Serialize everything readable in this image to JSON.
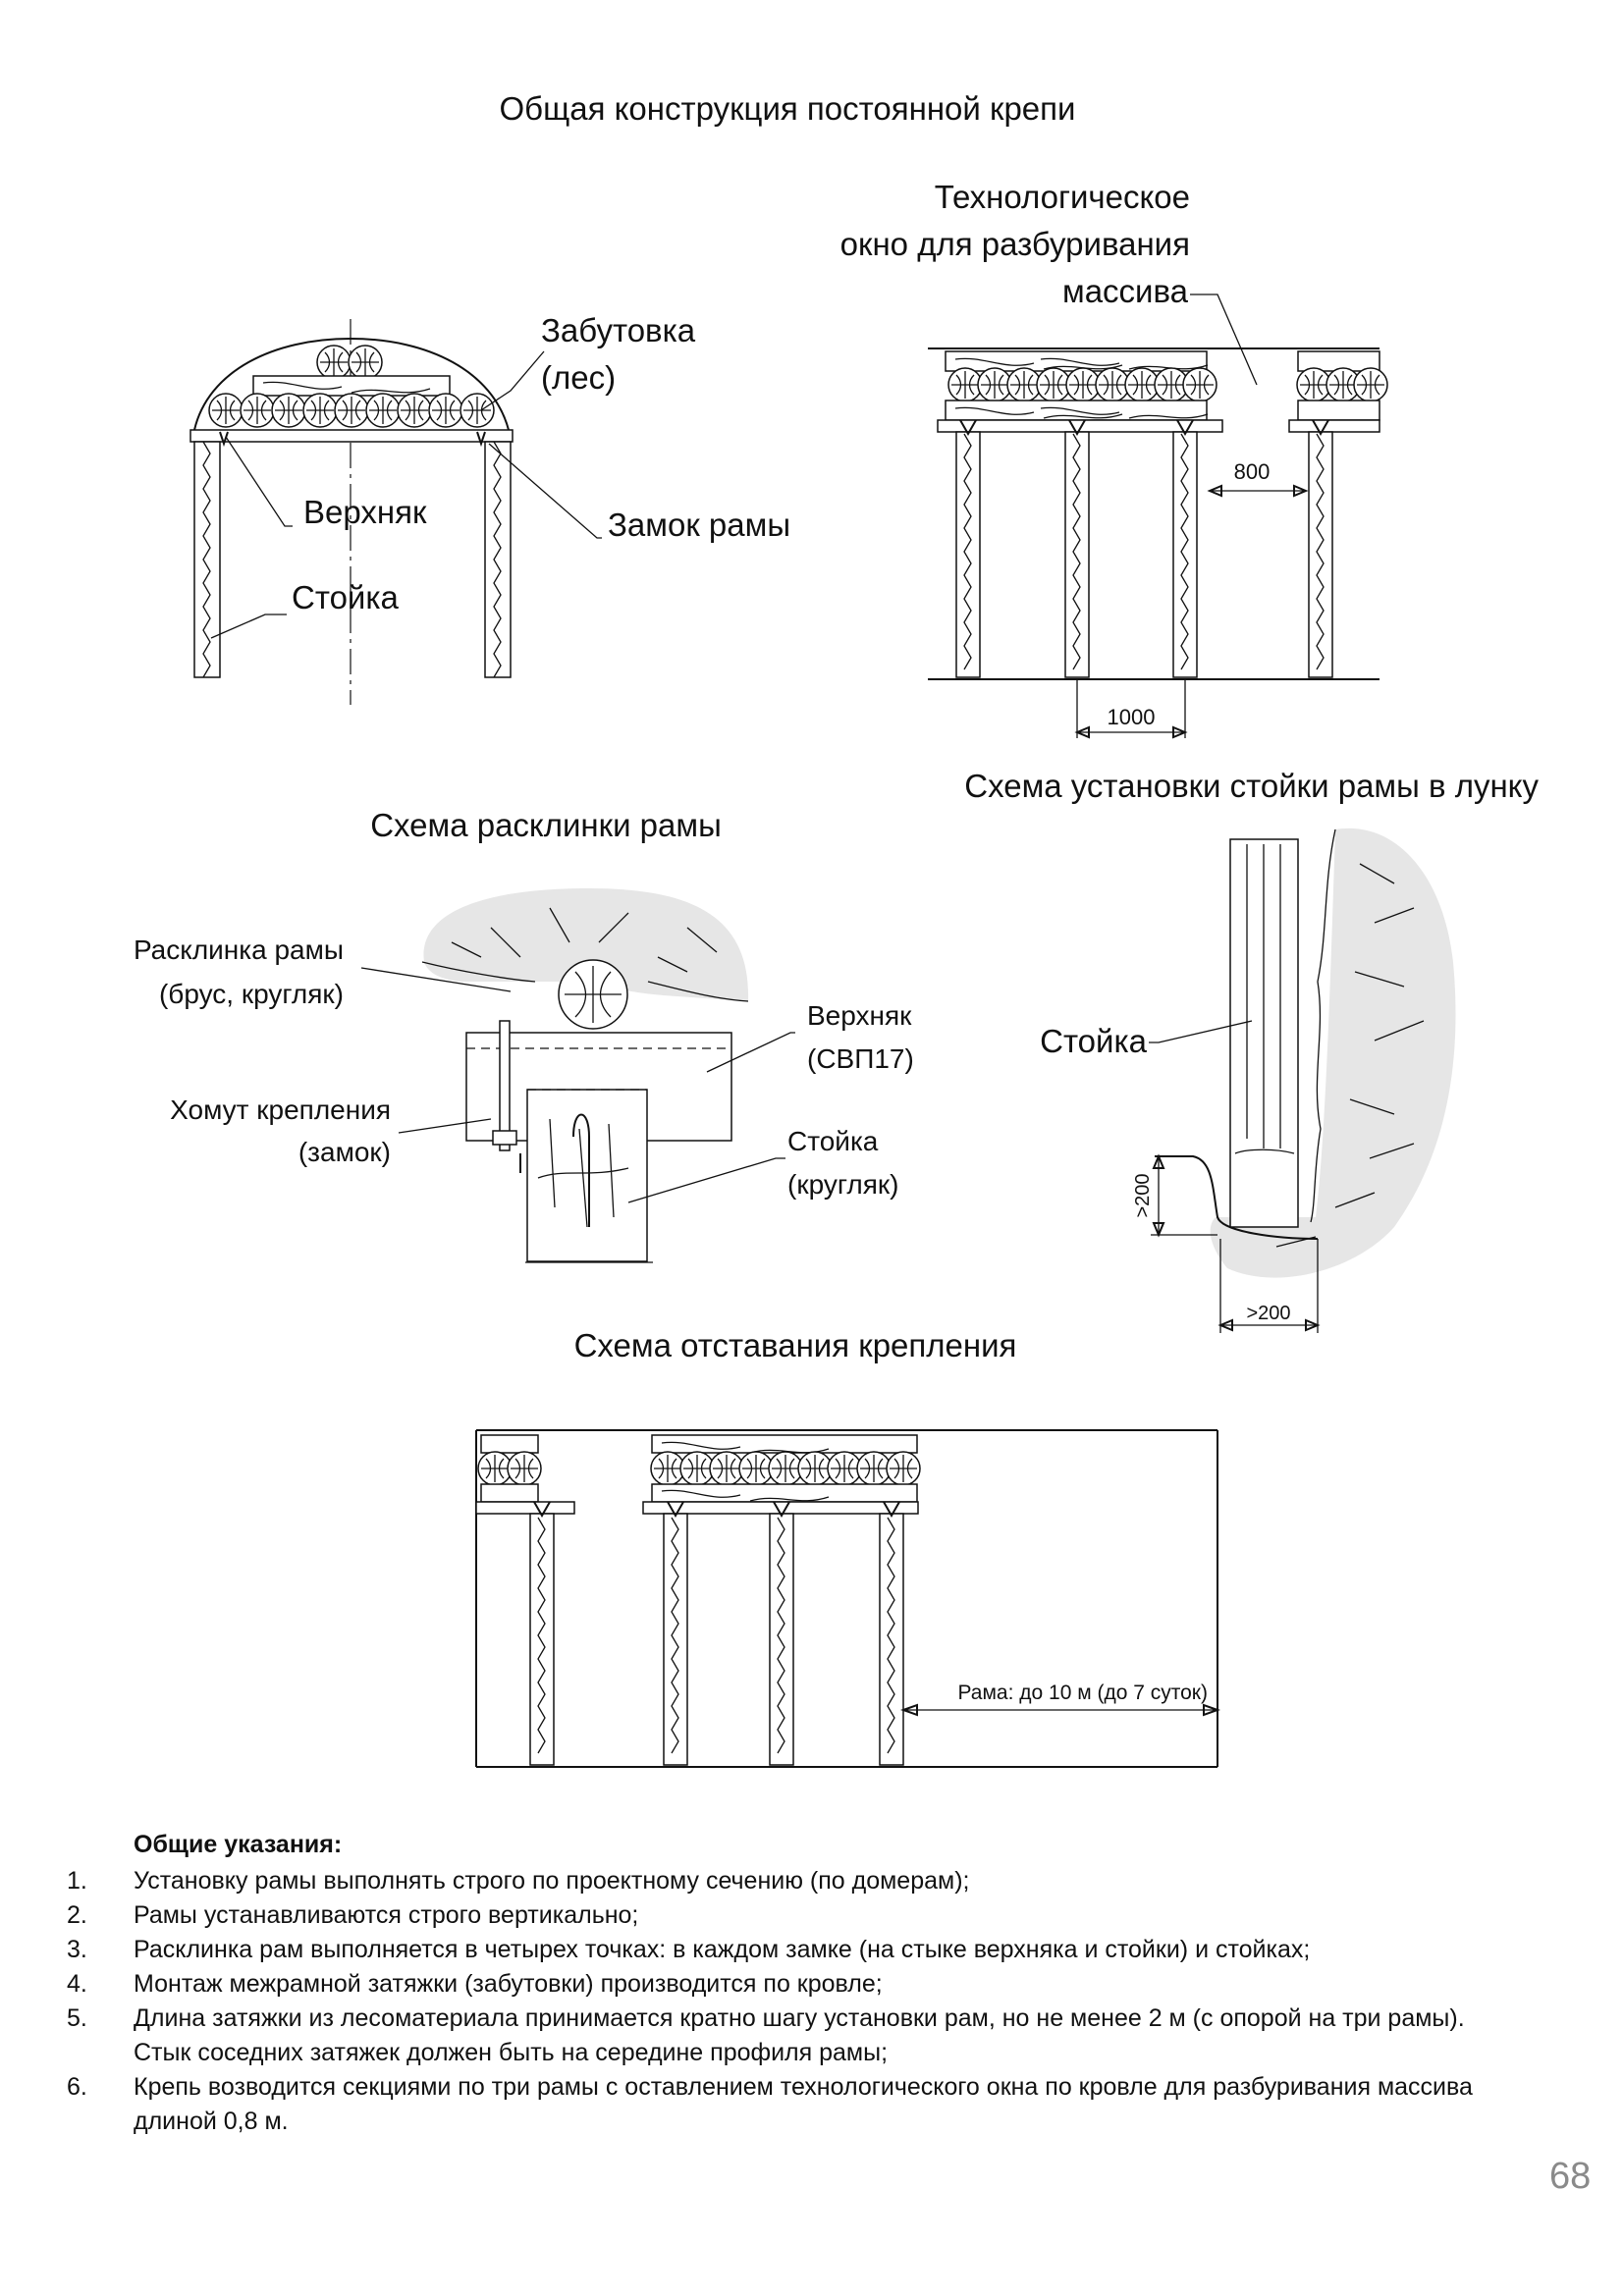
{
  "page": {
    "title": "Общая конструкция постоянной крепи",
    "number": "68"
  },
  "fig_general": {
    "labels": {
      "zabutovka_1": "Забутовка",
      "zabutovka_2": "(лес)",
      "verkhnyak": "Верхняк",
      "zamok": "Замок рамы",
      "stoyka": "Стойка"
    }
  },
  "fig_window": {
    "label_1": "Технологическое",
    "label_2": "окно для разбуривания",
    "label_3": "массива",
    "dim_window": "800",
    "dim_step": "1000"
  },
  "fig_wedge": {
    "title": "Схема расклинки рамы",
    "labels": {
      "wedge_1": "Расклинка рамы",
      "wedge_2": "(брус, кругляк)",
      "clamp_1": "Хомут крепления",
      "clamp_2": "(замок)",
      "top_1": "Верхняк",
      "top_2": "(СВП17)",
      "post_1": "Стойка",
      "post_2": "(кругляк)"
    }
  },
  "fig_hole": {
    "title": "Схема установки стойки рамы в лунку",
    "label": "Стойка",
    "dim_depth": ">200",
    "dim_width": ">200"
  },
  "fig_lag": {
    "title": "Схема отставания крепления",
    "label": "Рама: до 10 м (до 7 суток)"
  },
  "notes": {
    "heading": "Общие указания:",
    "items": [
      {
        "num": "1.",
        "lines": [
          "Установку рамы выполнять строго по проектному сечению (по домерам);"
        ]
      },
      {
        "num": "2.",
        "lines": [
          "Рамы устанавливаются строго вертикально;"
        ]
      },
      {
        "num": "3.",
        "lines": [
          "Расклинка рам выполняется в четырех точках: в каждом замке (на стыке верхняка и стойки) и стойках;"
        ]
      },
      {
        "num": "4.",
        "lines": [
          "Монтаж межрамной затяжки (забутовки) производится по кровле;"
        ]
      },
      {
        "num": "5.",
        "lines": [
          "Длина затяжки из лесоматериала принимается кратно шагу установки рам, но не менее 2 м (с опорой на три рамы).",
          "Стык соседних затяжек должен быть на середине профиля рамы;"
        ]
      },
      {
        "num": "6.",
        "lines": [
          "Крепь возводится секциями по три рамы с оставлением технологического окна по кровле для разбуривания массива",
          "длиной 0,8 м."
        ]
      }
    ]
  }
}
